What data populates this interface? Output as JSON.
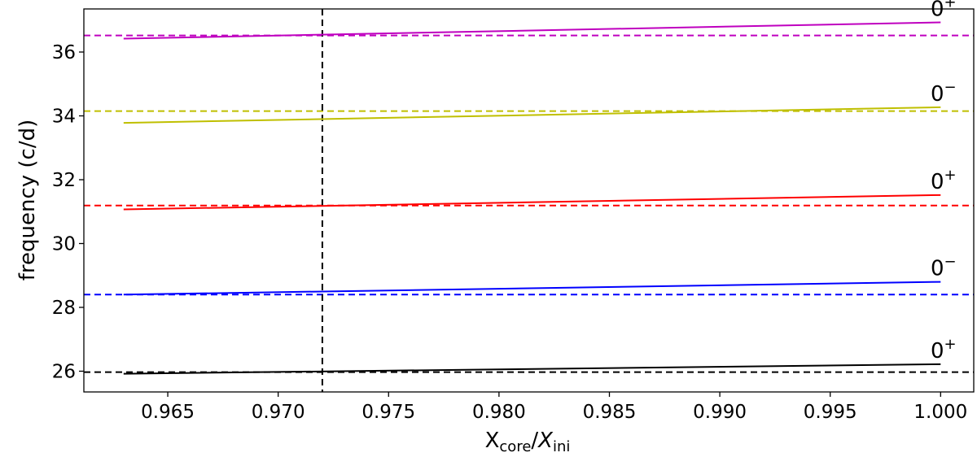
{
  "chart_data": {
    "type": "line",
    "title": "",
    "xlabel": {
      "base": "X",
      "sub1": "core",
      "sep": "/",
      "base2": "X",
      "sub2": "ini"
    },
    "ylabel": "frequency (c/d)",
    "xlim": [
      0.9612,
      1.0015
    ],
    "ylim": [
      25.35,
      37.35
    ],
    "x_ticks": [
      "0.965",
      "0.970",
      "0.975",
      "0.980",
      "0.985",
      "0.990",
      "0.995",
      "1.000"
    ],
    "y_ticks": [
      "26",
      "28",
      "30",
      "32",
      "34",
      "36"
    ],
    "grid": false,
    "vertical_reference_x": 0.972,
    "series": [
      {
        "color": "#000000",
        "x": [
          0.963,
          1.0
        ],
        "y": [
          25.92,
          26.22
        ],
        "observed": 25.97,
        "label": {
          "base": "0",
          "sup": "+"
        }
      },
      {
        "color": "#0000ff",
        "x": [
          0.963,
          1.0
        ],
        "y": [
          28.4,
          28.8
        ],
        "observed": 28.4,
        "label": {
          "base": "0",
          "sup": "−"
        }
      },
      {
        "color": "#ff0000",
        "x": [
          0.963,
          1.0
        ],
        "y": [
          31.07,
          31.52
        ],
        "observed": 31.19,
        "label": {
          "base": "0",
          "sup": "+"
        }
      },
      {
        "color": "#bfbf00",
        "x": [
          0.963,
          1.0
        ],
        "y": [
          33.78,
          34.27
        ],
        "observed": 34.15,
        "label": {
          "base": "0",
          "sup": "−"
        }
      },
      {
        "color": "#bf00bf",
        "x": [
          0.963,
          1.0
        ],
        "y": [
          36.42,
          36.93
        ],
        "observed": 36.52,
        "label": {
          "base": "0",
          "sup": "+"
        }
      }
    ]
  }
}
